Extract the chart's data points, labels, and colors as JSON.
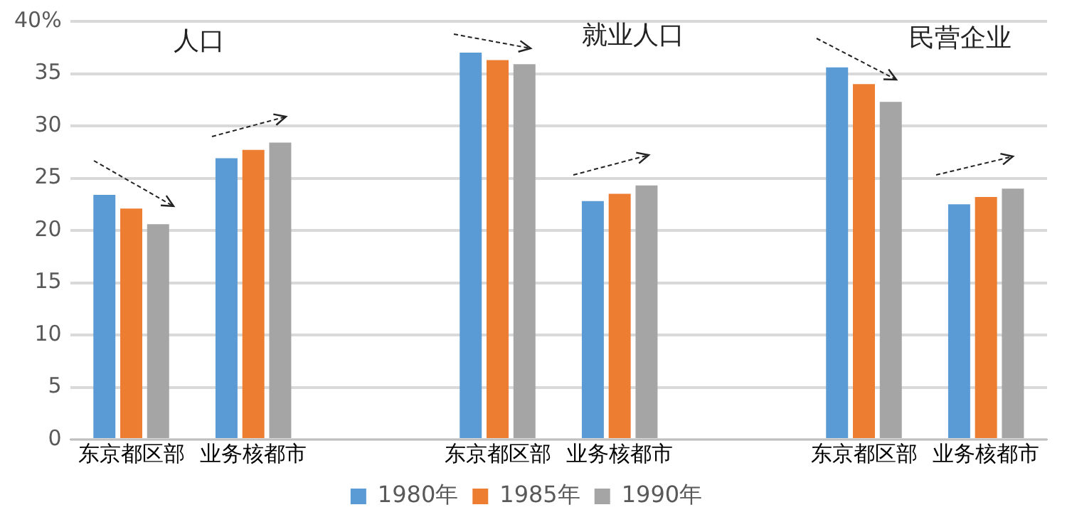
{
  "chart_data": {
    "type": "bar",
    "categories": [
      "东京都区部",
      "业务核都市",
      null,
      "东京都区部",
      "业务核都市",
      null,
      "东京都区部",
      "业务核都市"
    ],
    "series": [
      {
        "name": "1980年",
        "color": "#5b9bd5",
        "values": [
          23.4,
          26.9,
          null,
          37.0,
          22.8,
          null,
          35.6,
          22.5
        ]
      },
      {
        "name": "1985年",
        "color": "#ed7d31",
        "values": [
          22.1,
          27.7,
          null,
          36.3,
          23.5,
          null,
          34.0,
          23.2
        ]
      },
      {
        "name": "1990年",
        "color": "#a5a5a5",
        "values": [
          20.6,
          28.4,
          null,
          35.9,
          24.3,
          null,
          32.3,
          24.0
        ]
      }
    ],
    "ylim": [
      0,
      40
    ],
    "yticks": [
      0,
      5,
      10,
      15,
      20,
      25,
      30,
      35,
      {
        "value": 40,
        "label": "40%"
      }
    ],
    "annotations": [
      "人口",
      "就业人口",
      "民营企业"
    ],
    "grid": "y",
    "legend": "bottom"
  }
}
